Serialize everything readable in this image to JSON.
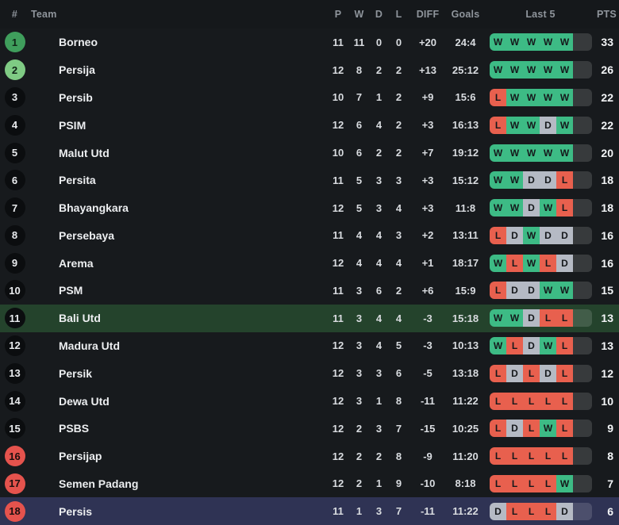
{
  "header": {
    "pos": "#",
    "team": "Team",
    "played": "P",
    "wins": "W",
    "draws": "D",
    "losses": "L",
    "diff": "DIFF",
    "goals": "Goals",
    "last5": "Last 5",
    "pts": "PTS"
  },
  "colors": {
    "win": "#3dbb85",
    "draw": "#b5bac4",
    "loss": "#e8604e",
    "row_highlight_green": "#24432c",
    "row_highlight_blue": "#2f3354",
    "pos_first": "#3f9e5c",
    "pos_second": "#7fcb84",
    "pos_relegation": "#e5534d"
  },
  "rows": [
    {
      "pos": "1",
      "pos_style": "promotion",
      "team": "Borneo",
      "logo": [
        "#c8102e",
        "#8a0f1e"
      ],
      "p": "11",
      "w": "11",
      "d": "0",
      "l": "0",
      "diff": "+20",
      "goals": "24:4",
      "last5": [
        "W",
        "W",
        "W",
        "W",
        "W"
      ],
      "pts": "33",
      "highlight": ""
    },
    {
      "pos": "2",
      "pos_style": "promotion-light",
      "team": "Persija",
      "logo": [
        "#d6372e",
        "#f2ede4"
      ],
      "p": "12",
      "w": "8",
      "d": "2",
      "l": "2",
      "diff": "+13",
      "goals": "25:12",
      "last5": [
        "W",
        "W",
        "W",
        "W",
        "W"
      ],
      "pts": "26",
      "highlight": ""
    },
    {
      "pos": "3",
      "pos_style": "neutral",
      "team": "Persib",
      "logo": [
        "#1f64b5",
        "#f5d312"
      ],
      "p": "10",
      "w": "7",
      "d": "1",
      "l": "2",
      "diff": "+9",
      "goals": "15:6",
      "last5": [
        "L",
        "W",
        "W",
        "W",
        "W"
      ],
      "pts": "22",
      "highlight": ""
    },
    {
      "pos": "4",
      "pos_style": "neutral",
      "team": "PSIM",
      "logo": [
        "#2a4fa0",
        "#f0c83c"
      ],
      "p": "12",
      "w": "6",
      "d": "4",
      "l": "2",
      "diff": "+3",
      "goals": "16:13",
      "last5": [
        "L",
        "W",
        "W",
        "D",
        "W"
      ],
      "pts": "22",
      "highlight": ""
    },
    {
      "pos": "5",
      "pos_style": "neutral",
      "team": "Malut Utd",
      "logo": [
        "#c8322e",
        "#f1f1f1"
      ],
      "p": "10",
      "w": "6",
      "d": "2",
      "l": "2",
      "diff": "+7",
      "goals": "19:12",
      "last5": [
        "W",
        "W",
        "W",
        "W",
        "W"
      ],
      "pts": "20",
      "highlight": ""
    },
    {
      "pos": "6",
      "pos_style": "neutral",
      "team": "Persita",
      "logo": [
        "#5b2d8e",
        "#8d6cb8"
      ],
      "p": "11",
      "w": "5",
      "d": "3",
      "l": "3",
      "diff": "+3",
      "goals": "15:12",
      "last5": [
        "W",
        "W",
        "D",
        "D",
        "L"
      ],
      "pts": "18",
      "highlight": ""
    },
    {
      "pos": "7",
      "pos_style": "neutral",
      "team": "Bhayangkara",
      "logo": [
        "#8a1f1f",
        "#e8c24a"
      ],
      "p": "12",
      "w": "5",
      "d": "3",
      "l": "4",
      "diff": "+3",
      "goals": "11:8",
      "last5": [
        "W",
        "W",
        "D",
        "W",
        "L"
      ],
      "pts": "18",
      "highlight": ""
    },
    {
      "pos": "8",
      "pos_style": "neutral",
      "team": "Persebaya",
      "logo": [
        "#1e7a34",
        "#e8d24a"
      ],
      "p": "11",
      "w": "4",
      "d": "4",
      "l": "3",
      "diff": "+2",
      "goals": "13:11",
      "last5": [
        "L",
        "D",
        "W",
        "D",
        "D"
      ],
      "pts": "16",
      "highlight": ""
    },
    {
      "pos": "9",
      "pos_style": "neutral",
      "team": "Arema",
      "logo": [
        "#1b3f8f",
        "#7aa0d8"
      ],
      "p": "12",
      "w": "4",
      "d": "4",
      "l": "4",
      "diff": "+1",
      "goals": "18:17",
      "last5": [
        "W",
        "L",
        "W",
        "L",
        "D"
      ],
      "pts": "16",
      "highlight": ""
    },
    {
      "pos": "10",
      "pos_style": "neutral",
      "team": "PSM",
      "logo": [
        "#c01f1f",
        "#8a1414"
      ],
      "p": "11",
      "w": "3",
      "d": "6",
      "l": "2",
      "diff": "+6",
      "goals": "15:9",
      "last5": [
        "L",
        "D",
        "D",
        "W",
        "W"
      ],
      "pts": "15",
      "highlight": ""
    },
    {
      "pos": "11",
      "pos_style": "neutral",
      "team": "Bali Utd",
      "logo": [
        "#1a1a1a",
        "#b01e28"
      ],
      "p": "11",
      "w": "3",
      "d": "4",
      "l": "4",
      "diff": "-3",
      "goals": "15:18",
      "last5": [
        "W",
        "W",
        "D",
        "L",
        "L"
      ],
      "pts": "13",
      "highlight": "green"
    },
    {
      "pos": "12",
      "pos_style": "neutral",
      "team": "Madura Utd",
      "logo": [
        "#c22a20",
        "#7a1410"
      ],
      "p": "12",
      "w": "3",
      "d": "4",
      "l": "5",
      "diff": "-3",
      "goals": "10:13",
      "last5": [
        "W",
        "L",
        "D",
        "W",
        "L"
      ],
      "pts": "13",
      "highlight": ""
    },
    {
      "pos": "13",
      "pos_style": "neutral",
      "team": "Persik",
      "logo": [
        "#2a2a2a",
        "#e0b12e"
      ],
      "p": "12",
      "w": "3",
      "d": "3",
      "l": "6",
      "diff": "-5",
      "goals": "13:18",
      "last5": [
        "L",
        "D",
        "L",
        "D",
        "L"
      ],
      "pts": "12",
      "highlight": ""
    },
    {
      "pos": "14",
      "pos_style": "neutral",
      "team": "Dewa Utd",
      "logo": [
        "#1f1b10",
        "#c9a23c"
      ],
      "p": "12",
      "w": "3",
      "d": "1",
      "l": "8",
      "diff": "-11",
      "goals": "11:22",
      "last5": [
        "L",
        "L",
        "L",
        "L",
        "L"
      ],
      "pts": "10",
      "highlight": ""
    },
    {
      "pos": "15",
      "pos_style": "neutral",
      "team": "PSBS",
      "logo": [
        "#2e9fd8",
        "#1468a8"
      ],
      "p": "12",
      "w": "2",
      "d": "3",
      "l": "7",
      "diff": "-15",
      "goals": "10:25",
      "last5": [
        "L",
        "D",
        "L",
        "W",
        "L"
      ],
      "pts": "9",
      "highlight": ""
    },
    {
      "pos": "16",
      "pos_style": "relegation",
      "team": "Persijap",
      "logo": [
        "#c42a24",
        "#e8d8a0"
      ],
      "p": "12",
      "w": "2",
      "d": "2",
      "l": "8",
      "diff": "-9",
      "goals": "11:20",
      "last5": [
        "L",
        "L",
        "L",
        "L",
        "L"
      ],
      "pts": "8",
      "highlight": ""
    },
    {
      "pos": "17",
      "pos_style": "relegation",
      "team": "Semen Padang",
      "logo": [
        "#e8e6e0",
        "#c42a24"
      ],
      "p": "12",
      "w": "2",
      "d": "1",
      "l": "9",
      "diff": "-10",
      "goals": "8:18",
      "last5": [
        "L",
        "L",
        "L",
        "L",
        "W"
      ],
      "pts": "7",
      "highlight": ""
    },
    {
      "pos": "18",
      "pos_style": "relegation",
      "team": "Persis",
      "logo": [
        "#f0eeea",
        "#c42a24"
      ],
      "p": "11",
      "w": "1",
      "d": "3",
      "l": "7",
      "diff": "-11",
      "goals": "11:22",
      "last5": [
        "D",
        "L",
        "L",
        "L",
        "D"
      ],
      "pts": "6",
      "highlight": "blue"
    }
  ]
}
